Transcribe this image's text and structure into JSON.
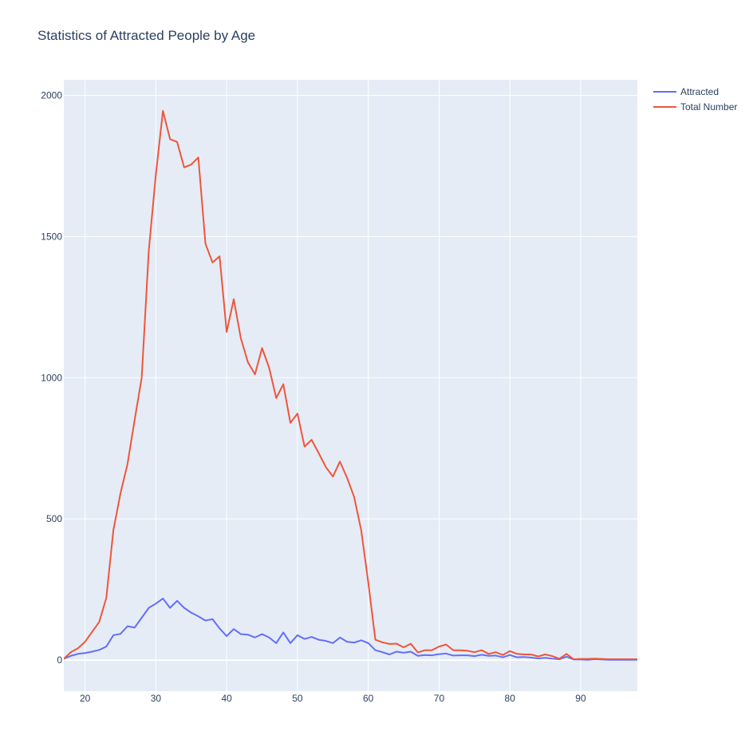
{
  "chart_data": {
    "type": "line",
    "title": "Statistics of Attracted People by Age",
    "xlabel": "",
    "ylabel": "",
    "xlim": [
      17,
      98
    ],
    "ylim": [
      -110,
      2055
    ],
    "xticks": [
      20,
      30,
      40,
      50,
      60,
      70,
      80,
      90
    ],
    "yticks": [
      0,
      500,
      1000,
      1500,
      2000
    ],
    "grid": true,
    "legend_position": "top-right",
    "x": [
      17,
      18,
      19,
      20,
      21,
      22,
      23,
      24,
      25,
      26,
      27,
      28,
      29,
      30,
      31,
      32,
      33,
      34,
      35,
      36,
      37,
      38,
      39,
      40,
      41,
      42,
      43,
      44,
      45,
      46,
      47,
      48,
      49,
      50,
      51,
      52,
      53,
      54,
      55,
      56,
      57,
      58,
      59,
      60,
      61,
      62,
      63,
      64,
      65,
      66,
      67,
      68,
      69,
      70,
      71,
      72,
      73,
      74,
      75,
      76,
      77,
      78,
      79,
      80,
      81,
      82,
      83,
      84,
      85,
      86,
      87,
      88,
      89,
      90,
      91,
      92,
      93,
      94,
      95,
      96,
      97,
      98
    ],
    "series": [
      {
        "name": "Attracted",
        "color": "#636efa",
        "values": [
          5,
          15,
          22,
          25,
          30,
          36,
          48,
          88,
          93,
          120,
          115,
          150,
          185,
          200,
          218,
          185,
          210,
          185,
          168,
          155,
          140,
          145,
          112,
          85,
          110,
          92,
          90,
          80,
          92,
          80,
          60,
          98,
          60,
          88,
          75,
          82,
          72,
          68,
          60,
          80,
          65,
          62,
          70,
          60,
          35,
          28,
          20,
          30,
          26,
          30,
          15,
          18,
          17,
          21,
          23,
          16,
          17,
          17,
          14,
          19,
          15,
          16,
          10,
          18,
          10,
          11,
          9,
          6,
          8,
          5,
          3,
          12,
          2,
          2,
          1,
          3,
          2,
          1,
          1,
          1,
          1,
          1
        ]
      },
      {
        "name": "Total Number",
        "color": "#ef553b",
        "values": [
          5,
          28,
          42,
          65,
          100,
          135,
          220,
          460,
          590,
          695,
          850,
          1000,
          1450,
          1720,
          1945,
          1845,
          1835,
          1745,
          1755,
          1780,
          1475,
          1408,
          1430,
          1162,
          1278,
          1140,
          1055,
          1012,
          1105,
          1035,
          928,
          977,
          840,
          873,
          756,
          780,
          733,
          684,
          650,
          703,
          646,
          578,
          460,
          275,
          72,
          63,
          57,
          58,
          45,
          58,
          27,
          35,
          35,
          48,
          55,
          35,
          35,
          33,
          28,
          35,
          22,
          28,
          18,
          32,
          22,
          20,
          20,
          13,
          20,
          14,
          5,
          22,
          3,
          4,
          4,
          5,
          4,
          3,
          3,
          3,
          3,
          3
        ]
      }
    ]
  }
}
